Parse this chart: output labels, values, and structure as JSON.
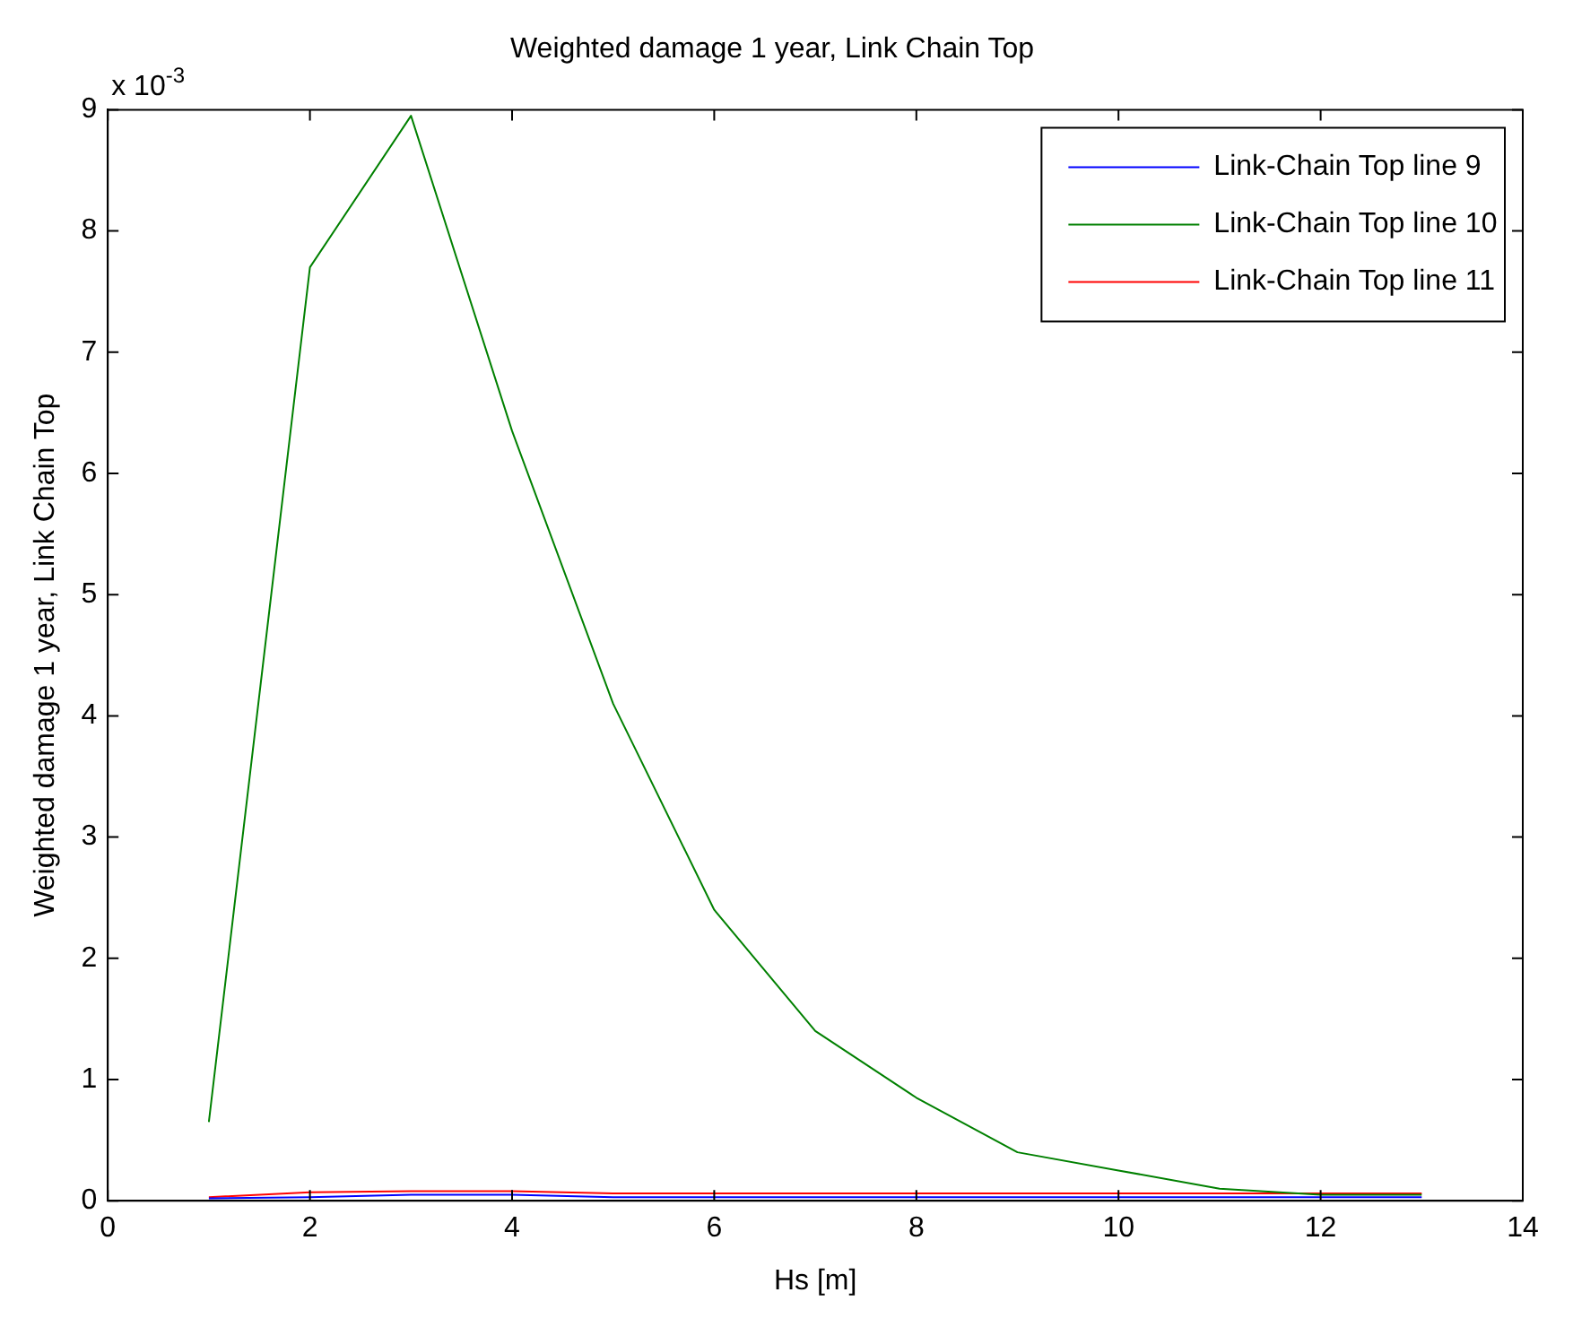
{
  "chart_data": {
    "type": "line",
    "title": "Weighted damage 1 year, Link Chain Top",
    "xlabel": "Hs [m]",
    "ylabel": "Weighted damage 1 year, Link Chain Top",
    "x": [
      1,
      2,
      3,
      4,
      5,
      6,
      7,
      8,
      9,
      10,
      11,
      12,
      13
    ],
    "series": [
      {
        "name": "Link-Chain Top line 9",
        "color": "#0000ff",
        "values": [
          0.02,
          0.03,
          0.05,
          0.05,
          0.03,
          0.03,
          0.03,
          0.03,
          0.03,
          0.03,
          0.03,
          0.03,
          0.03
        ]
      },
      {
        "name": "Link-Chain Top line 10",
        "color": "#008000",
        "values": [
          0.65,
          7.7,
          8.95,
          6.35,
          4.1,
          2.4,
          1.4,
          0.85,
          0.4,
          0.25,
          0.1,
          0.05,
          0.05
        ]
      },
      {
        "name": "Link-Chain Top line 11",
        "color": "#ff0000",
        "values": [
          0.03,
          0.07,
          0.08,
          0.08,
          0.06,
          0.06,
          0.06,
          0.06,
          0.06,
          0.06,
          0.06,
          0.06,
          0.06
        ]
      }
    ],
    "xlim": [
      0,
      14
    ],
    "xticks": [
      0,
      2,
      4,
      6,
      8,
      10,
      12,
      14
    ],
    "ylim": [
      0,
      9
    ],
    "yticks": [
      0,
      1,
      2,
      3,
      4,
      5,
      6,
      7,
      8,
      9
    ],
    "annotations": [
      "x 10$^{-3}$"
    ],
    "legend": "top right",
    "grid": false,
    "marker": "none",
    "line_style": "solid"
  }
}
